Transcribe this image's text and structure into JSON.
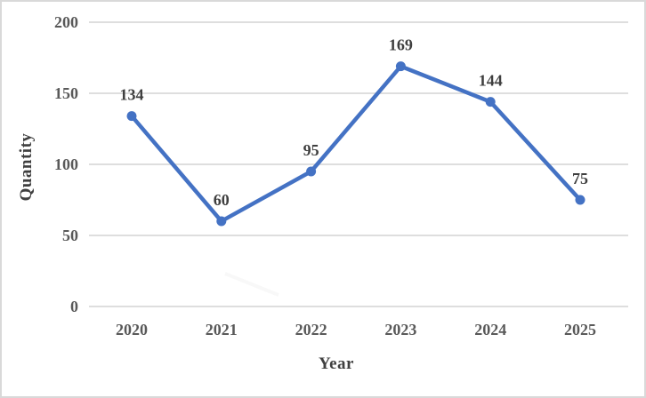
{
  "figure": {
    "border_color": "#d9d9d9",
    "background_color": "#ffffff"
  },
  "chart_data": {
    "type": "line",
    "title": "",
    "categories": [
      "2020",
      "2021",
      "2022",
      "2023",
      "2024",
      "2025"
    ],
    "values": [
      134,
      60,
      95,
      169,
      144,
      75
    ],
    "xlabel": "Year",
    "ylabel": "Quantity",
    "ylim": [
      0,
      200
    ],
    "yticks": [
      0,
      50,
      100,
      150,
      200
    ],
    "grid": true,
    "legend": false,
    "data_labels_shown": true,
    "line_color": "#4472C4",
    "marker_color": "#4472C4",
    "marker_shape": "circle",
    "gridline_color": "#d9d9d9",
    "tick_label_color": "#595959",
    "data_label_color": "#3f3f3f",
    "axis_title_color": "#3f3f3f"
  }
}
